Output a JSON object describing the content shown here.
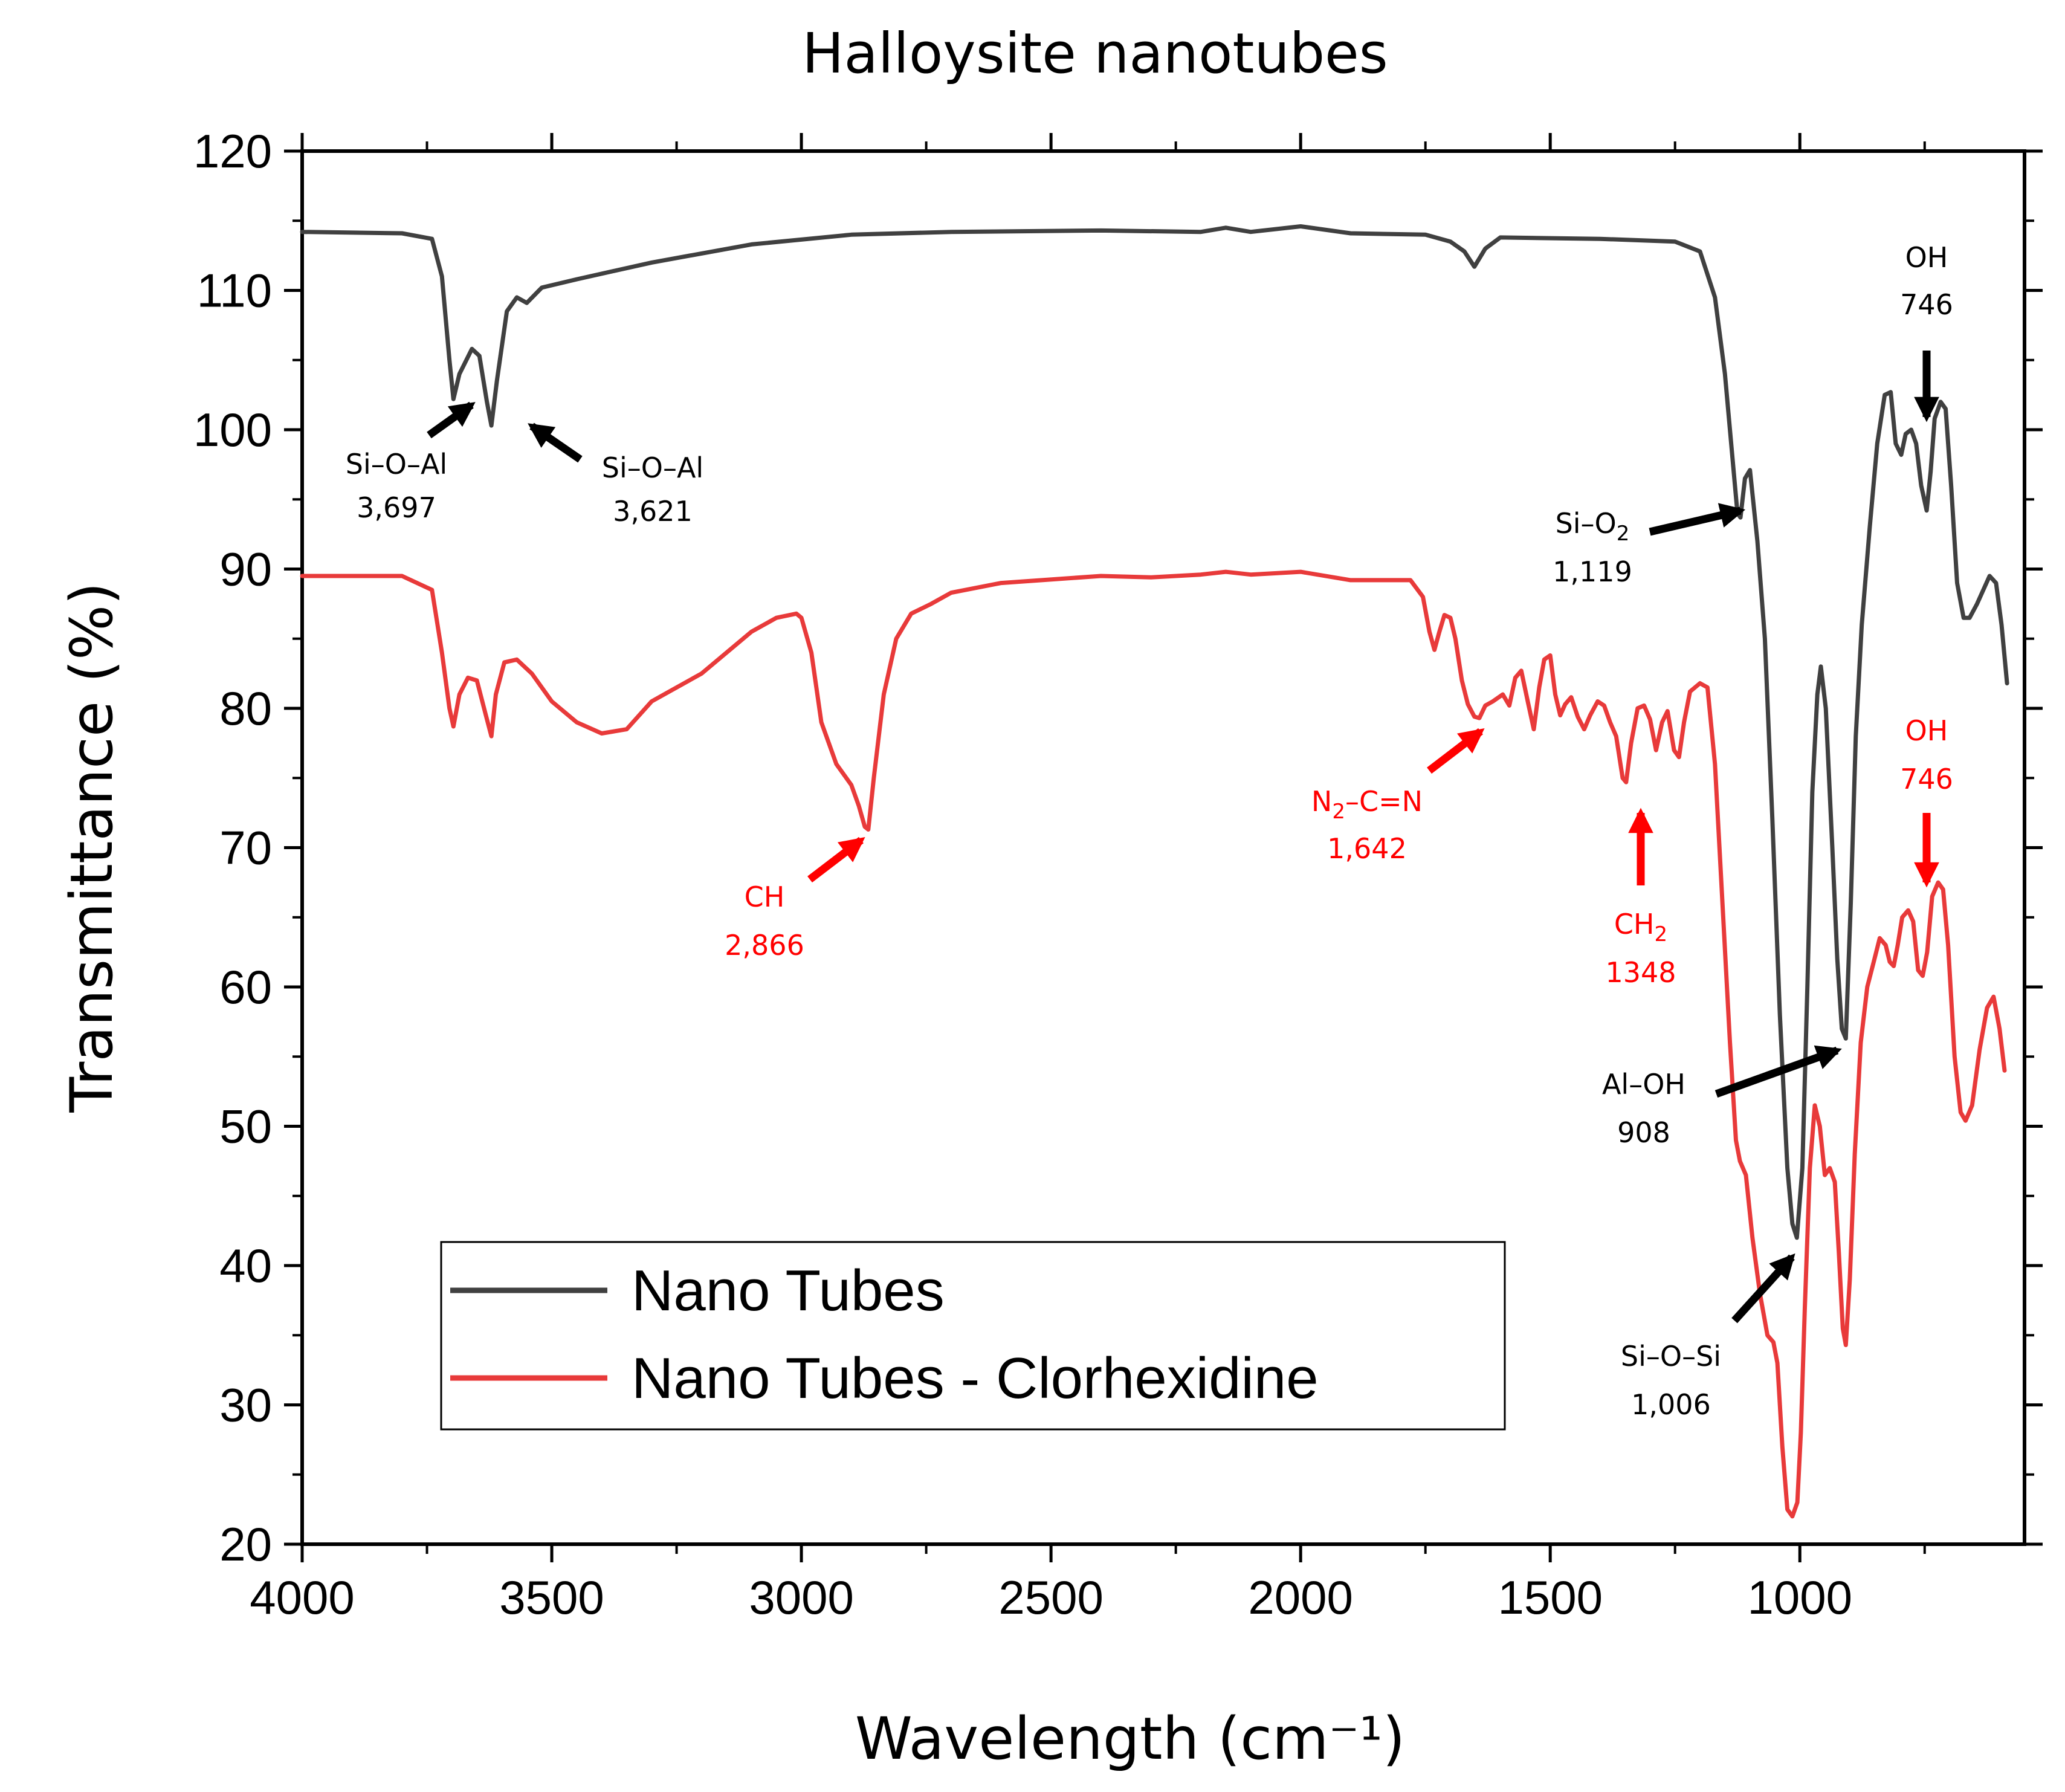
{
  "chart_data": {
    "type": "line",
    "title": "Halloysite nanotubes",
    "xlabel": "Wavelength (cm⁻¹)",
    "ylabel": "Transmittance (%)",
    "xlim": [
      4000,
      550
    ],
    "ylim": [
      20,
      120
    ],
    "xticks": [
      4000,
      3500,
      3000,
      2500,
      2000,
      1500,
      1000
    ],
    "yticks": [
      20,
      30,
      40,
      50,
      60,
      70,
      80,
      90,
      100,
      110,
      120
    ],
    "legend_position": "lower-left",
    "series": [
      {
        "name": "Nano Tubes",
        "color": "#404040",
        "points": [
          [
            4000,
            114.2
          ],
          [
            3800,
            114.1
          ],
          [
            3740,
            113.7
          ],
          [
            3720,
            111
          ],
          [
            3705,
            105
          ],
          [
            3697,
            102.2
          ],
          [
            3685,
            104
          ],
          [
            3660,
            105.8
          ],
          [
            3645,
            105.3
          ],
          [
            3630,
            102
          ],
          [
            3621,
            100.3
          ],
          [
            3610,
            103.5
          ],
          [
            3590,
            108.5
          ],
          [
            3570,
            109.5
          ],
          [
            3550,
            109.1
          ],
          [
            3520,
            110.2
          ],
          [
            3450,
            110.8
          ],
          [
            3300,
            112
          ],
          [
            3100,
            113.3
          ],
          [
            2900,
            114
          ],
          [
            2700,
            114.2
          ],
          [
            2400,
            114.3
          ],
          [
            2200,
            114.2
          ],
          [
            2150,
            114.5
          ],
          [
            2100,
            114.2
          ],
          [
            2000,
            114.6
          ],
          [
            1900,
            114.1
          ],
          [
            1750,
            114
          ],
          [
            1700,
            113.5
          ],
          [
            1672,
            112.8
          ],
          [
            1652,
            111.7
          ],
          [
            1630,
            113
          ],
          [
            1600,
            113.8
          ],
          [
            1400,
            113.7
          ],
          [
            1250,
            113.5
          ],
          [
            1200,
            112.8
          ],
          [
            1170,
            109.5
          ],
          [
            1150,
            104
          ],
          [
            1135,
            98
          ],
          [
            1125,
            94
          ],
          [
            1119,
            93.7
          ],
          [
            1110,
            96.5
          ],
          [
            1100,
            97.1
          ],
          [
            1085,
            92
          ],
          [
            1070,
            85
          ],
          [
            1055,
            72
          ],
          [
            1040,
            58
          ],
          [
            1025,
            47
          ],
          [
            1015,
            43
          ],
          [
            1006,
            42
          ],
          [
            995,
            47
          ],
          [
            985,
            60
          ],
          [
            975,
            74
          ],
          [
            965,
            81
          ],
          [
            958,
            83
          ],
          [
            948,
            80
          ],
          [
            935,
            70
          ],
          [
            925,
            62
          ],
          [
            916,
            57
          ],
          [
            908,
            56.3
          ],
          [
            898,
            66
          ],
          [
            888,
            78
          ],
          [
            876,
            86
          ],
          [
            860,
            93
          ],
          [
            845,
            99
          ],
          [
            830,
            102.5
          ],
          [
            818,
            102.7
          ],
          [
            808,
            99
          ],
          [
            797,
            98.2
          ],
          [
            788,
            99.7
          ],
          [
            777,
            100
          ],
          [
            767,
            99
          ],
          [
            757,
            96
          ],
          [
            746,
            94.2
          ],
          [
            738,
            97
          ],
          [
            730,
            100.8
          ],
          [
            718,
            102
          ],
          [
            708,
            101.5
          ],
          [
            697,
            96
          ],
          [
            685,
            89
          ],
          [
            672,
            86.5
          ],
          [
            660,
            86.5
          ],
          [
            645,
            87.5
          ],
          [
            620,
            89.5
          ],
          [
            607,
            89
          ],
          [
            596,
            86
          ],
          [
            585,
            81.8
          ]
        ]
      },
      {
        "name": "Nano Tubes - Clorhexidine",
        "color": "#e83a3a",
        "points": [
          [
            4000,
            89.5
          ],
          [
            3800,
            89.5
          ],
          [
            3740,
            88.5
          ],
          [
            3720,
            84
          ],
          [
            3705,
            80
          ],
          [
            3697,
            78.7
          ],
          [
            3685,
            81
          ],
          [
            3668,
            82.2
          ],
          [
            3650,
            82
          ],
          [
            3632,
            79.5
          ],
          [
            3621,
            78
          ],
          [
            3612,
            81
          ],
          [
            3595,
            83.3
          ],
          [
            3570,
            83.5
          ],
          [
            3540,
            82.5
          ],
          [
            3500,
            80.5
          ],
          [
            3450,
            79
          ],
          [
            3400,
            78.2
          ],
          [
            3350,
            78.5
          ],
          [
            3300,
            80.5
          ],
          [
            3200,
            82.5
          ],
          [
            3100,
            85.5
          ],
          [
            3050,
            86.5
          ],
          [
            3010,
            86.8
          ],
          [
            3000,
            86.5
          ],
          [
            2980,
            84
          ],
          [
            2960,
            79
          ],
          [
            2930,
            76
          ],
          [
            2900,
            74.5
          ],
          [
            2885,
            73
          ],
          [
            2873,
            71.5
          ],
          [
            2866,
            71.3
          ],
          [
            2855,
            75
          ],
          [
            2835,
            81
          ],
          [
            2810,
            85
          ],
          [
            2780,
            86.8
          ],
          [
            2740,
            87.5
          ],
          [
            2700,
            88.3
          ],
          [
            2600,
            89
          ],
          [
            2400,
            89.5
          ],
          [
            2300,
            89.4
          ],
          [
            2200,
            89.6
          ],
          [
            2150,
            89.8
          ],
          [
            2100,
            89.6
          ],
          [
            2000,
            89.8
          ],
          [
            1900,
            89.2
          ],
          [
            1780,
            89.2
          ],
          [
            1755,
            88
          ],
          [
            1742,
            85.5
          ],
          [
            1732,
            84.2
          ],
          [
            1722,
            85.5
          ],
          [
            1712,
            86.7
          ],
          [
            1700,
            86.5
          ],
          [
            1690,
            85
          ],
          [
            1677,
            82
          ],
          [
            1665,
            80.3
          ],
          [
            1652,
            79.4
          ],
          [
            1642,
            79.3
          ],
          [
            1630,
            80.2
          ],
          [
            1615,
            80.5
          ],
          [
            1595,
            81
          ],
          [
            1582,
            80.2
          ],
          [
            1570,
            82.2
          ],
          [
            1558,
            82.7
          ],
          [
            1545,
            80.5
          ],
          [
            1533,
            78.5
          ],
          [
            1522,
            81.5
          ],
          [
            1512,
            83.5
          ],
          [
            1500,
            83.8
          ],
          [
            1490,
            81
          ],
          [
            1480,
            79.5
          ],
          [
            1470,
            80.3
          ],
          [
            1458,
            80.8
          ],
          [
            1445,
            79.4
          ],
          [
            1432,
            78.5
          ],
          [
            1420,
            79.5
          ],
          [
            1405,
            80.5
          ],
          [
            1392,
            80.2
          ],
          [
            1380,
            79
          ],
          [
            1368,
            78
          ],
          [
            1355,
            75
          ],
          [
            1348,
            74.7
          ],
          [
            1338,
            77.5
          ],
          [
            1325,
            80
          ],
          [
            1312,
            80.2
          ],
          [
            1300,
            79.2
          ],
          [
            1288,
            77
          ],
          [
            1276,
            79
          ],
          [
            1265,
            79.8
          ],
          [
            1252,
            77
          ],
          [
            1242,
            76.5
          ],
          [
            1232,
            79
          ],
          [
            1220,
            81.2
          ],
          [
            1200,
            81.8
          ],
          [
            1185,
            81.5
          ],
          [
            1170,
            76
          ],
          [
            1155,
            66
          ],
          [
            1140,
            56
          ],
          [
            1128,
            49
          ],
          [
            1120,
            47.5
          ],
          [
            1108,
            46.5
          ],
          [
            1095,
            42
          ],
          [
            1080,
            38
          ],
          [
            1065,
            35
          ],
          [
            1053,
            34.5
          ],
          [
            1045,
            33
          ],
          [
            1035,
            27
          ],
          [
            1025,
            22.5
          ],
          [
            1015,
            22
          ],
          [
            1005,
            23
          ],
          [
            998,
            28
          ],
          [
            990,
            37
          ],
          [
            980,
            47
          ],
          [
            970,
            51.5
          ],
          [
            960,
            50
          ],
          [
            950,
            46.5
          ],
          [
            940,
            47
          ],
          [
            930,
            46
          ],
          [
            922,
            41
          ],
          [
            914,
            35.5
          ],
          [
            908,
            34.3
          ],
          [
            900,
            39
          ],
          [
            890,
            48
          ],
          [
            878,
            56
          ],
          [
            865,
            60
          ],
          [
            852,
            61.8
          ],
          [
            840,
            63.5
          ],
          [
            828,
            63
          ],
          [
            820,
            61.8
          ],
          [
            812,
            61.5
          ],
          [
            804,
            63
          ],
          [
            795,
            65
          ],
          [
            783,
            65.5
          ],
          [
            773,
            64.7
          ],
          [
            763,
            61.2
          ],
          [
            754,
            60.8
          ],
          [
            745,
            62.5
          ],
          [
            735,
            66.5
          ],
          [
            723,
            67.5
          ],
          [
            713,
            67
          ],
          [
            703,
            63
          ],
          [
            690,
            55
          ],
          [
            678,
            51
          ],
          [
            668,
            50.4
          ],
          [
            655,
            51.5
          ],
          [
            640,
            55.5
          ],
          [
            625,
            58.5
          ],
          [
            612,
            59.3
          ],
          [
            600,
            57
          ],
          [
            590,
            54
          ]
        ]
      }
    ],
    "annotations": [
      {
        "text": "Si–O–Al",
        "value": "3,697",
        "color": "#000000"
      },
      {
        "text": "Si–O–Al",
        "value": "3,621",
        "color": "#000000"
      },
      {
        "text": "Si–O",
        "sub": "2",
        "value": "1,119",
        "color": "#000000"
      },
      {
        "text": "OH",
        "value": "746",
        "color": "#000000"
      },
      {
        "text": "Al–OH",
        "value": "908",
        "color": "#000000"
      },
      {
        "text": "Si–O–Si",
        "value": "1,006",
        "color": "#000000"
      },
      {
        "text": "CH",
        "value": "2,866",
        "color": "#ff0000"
      },
      {
        "text": "N",
        "sub": "2",
        "rest": "–C=N",
        "value": "1,642",
        "color": "#ff0000"
      },
      {
        "text": "CH",
        "sub": "2",
        "value": "1348",
        "color": "#ff0000"
      },
      {
        "text": "OH",
        "value": "746",
        "color": "#ff0000"
      }
    ]
  }
}
